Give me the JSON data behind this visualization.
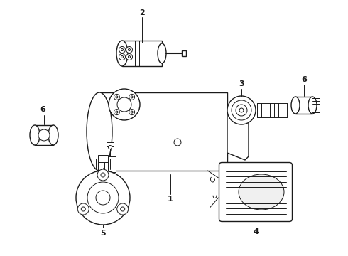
{
  "bg_color": "#ffffff",
  "line_color": "#1a1a1a",
  "label_color": "#1a1a1a",
  "fig_width": 4.9,
  "fig_height": 3.6,
  "dpi": 100
}
